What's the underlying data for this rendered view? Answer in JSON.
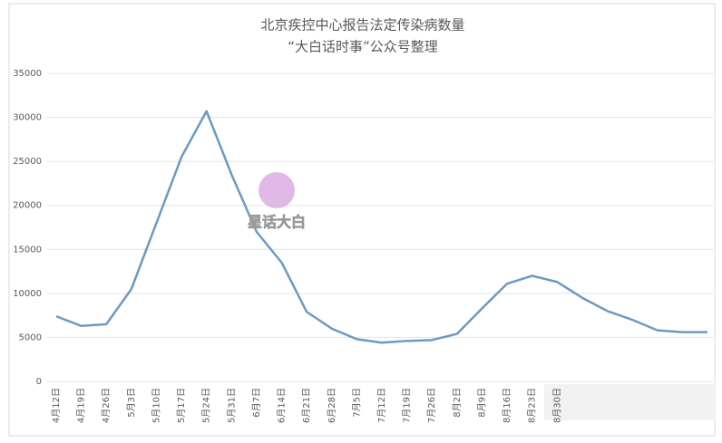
{
  "chart_data": {
    "type": "line",
    "title": "北京疾控中心报告法定传染病数量",
    "subtitle": "“大白话时事”公众号整理",
    "watermark": "星话大白",
    "categories": [
      "4月12日",
      "4月19日",
      "4月26日",
      "5月3日",
      "5月10日",
      "5月17日",
      "5月24日",
      "5月31日",
      "6月7日",
      "6月14日",
      "6月21日",
      "6月28日",
      "7月5日",
      "7月12日",
      "7月19日",
      "7月26日",
      "8月2日",
      "8月9日",
      "8月16日",
      "8月23日",
      "8月30日",
      null,
      null,
      null,
      null,
      null,
      null
    ],
    "values": [
      7400,
      6300,
      6500,
      10500,
      18000,
      25500,
      30700,
      23500,
      17000,
      13500,
      7900,
      6000,
      4800,
      4400,
      4600,
      4700,
      5400,
      8300,
      11100,
      12000,
      11300,
      9500,
      8000,
      7000,
      5800,
      5600,
      5600
    ],
    "color": "#6a9ac4",
    "ylim": [
      0,
      35000
    ],
    "yticks": [
      0,
      5000,
      10000,
      15000,
      20000,
      25000,
      30000,
      35000
    ],
    "grid": true
  }
}
